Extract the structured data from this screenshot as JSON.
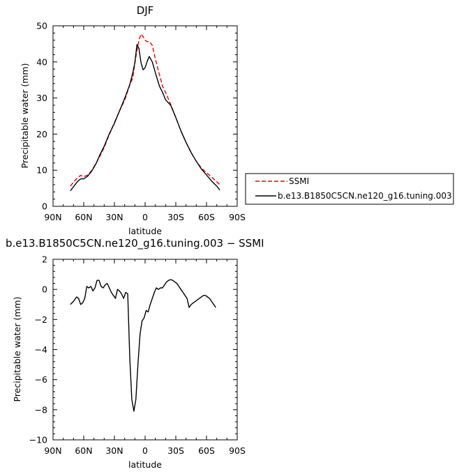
{
  "chart_data": [
    {
      "type": "line",
      "title": "DJF",
      "xlabel": "latitude",
      "ylabel": "Precipitable water (mm)",
      "xlim": [
        90,
        -90
      ],
      "ylim": [
        0,
        50
      ],
      "x_ticks": [
        90,
        60,
        30,
        0,
        -30,
        -60,
        -90
      ],
      "x_tick_labels": [
        "90N",
        "60N",
        "30N",
        "0",
        "30S",
        "60S",
        "90S"
      ],
      "y_ticks": [
        0,
        10,
        20,
        30,
        40,
        50
      ],
      "y_tick_labels": [
        "0",
        "10",
        "20",
        "30",
        "40",
        "50"
      ],
      "legend_position": "right",
      "series": [
        {
          "name": "SSMI",
          "color": "#e8000b",
          "dash": "dashed",
          "x": [
            73,
            70,
            66,
            63,
            60,
            56,
            52,
            48,
            44,
            40,
            35,
            30,
            25,
            20,
            15,
            12,
            10,
            8,
            6,
            4,
            2,
            0,
            -2,
            -4,
            -7,
            -10,
            -14,
            -17,
            -20,
            -25,
            -30,
            -35,
            -40,
            -45,
            -50,
            -55,
            -60,
            -65,
            -70,
            -73
          ],
          "y": [
            5.6,
            6.7,
            7.9,
            8.6,
            8.2,
            8.7,
            10.0,
            11.9,
            14.0,
            16.3,
            19.9,
            23.2,
            26.4,
            29.4,
            33.6,
            35.6,
            39.6,
            43.2,
            46.0,
            47.7,
            47.0,
            46.0,
            45.6,
            45.7,
            44.6,
            40.8,
            36.5,
            33.3,
            31.6,
            28.2,
            24.6,
            20.9,
            17.7,
            14.8,
            12.5,
            10.6,
            9.3,
            8.1,
            6.8,
            6.0
          ]
        },
        {
          "name": "b.e13.B1850C5CN.ne120_g16.tuning.003",
          "color": "#000000",
          "dash": "solid",
          "x": [
            73,
            70,
            66,
            63,
            60,
            56,
            52,
            48,
            44,
            40,
            35,
            30,
            25,
            20,
            15,
            12,
            10,
            8,
            6,
            4,
            2,
            0,
            -2,
            -4,
            -7,
            -10,
            -14,
            -17,
            -20,
            -25,
            -30,
            -35,
            -40,
            -45,
            -50,
            -55,
            -60,
            -65,
            -70,
            -73
          ],
          "y": [
            4.3,
            5.4,
            6.9,
            7.6,
            7.6,
            8.4,
            9.8,
            11.8,
            14.4,
            16.6,
            20.1,
            23.0,
            26.4,
            29.9,
            33.7,
            37.0,
            39.8,
            44.8,
            43.7,
            39.8,
            37.8,
            38.4,
            40.1,
            41.5,
            40.0,
            37.0,
            33.3,
            31.6,
            29.5,
            28.0,
            24.6,
            20.9,
            17.7,
            14.9,
            12.5,
            10.3,
            8.7,
            7.0,
            5.6,
            4.5
          ]
        }
      ]
    },
    {
      "type": "line",
      "title": "b.e13.B1850C5CN.ne120_g16.tuning.003 − SSMI",
      "xlabel": "latitude",
      "ylabel": "Precipitable water (mm)",
      "xlim": [
        90,
        -90
      ],
      "ylim": [
        -10,
        2
      ],
      "x_ticks": [
        90,
        60,
        30,
        0,
        -30,
        -60,
        -90
      ],
      "x_tick_labels": [
        "90N",
        "60N",
        "30N",
        "0",
        "30S",
        "60S",
        "90S"
      ],
      "y_ticks": [
        -10,
        -8,
        -6,
        -4,
        -2,
        0,
        2
      ],
      "y_tick_labels": [
        "−10",
        "−8",
        "−6",
        "−4",
        "−2",
        "0",
        "2"
      ],
      "series": [
        {
          "color": "#000000",
          "dash": "solid",
          "x": [
            73,
            70,
            67,
            65,
            63,
            61,
            59,
            57,
            55,
            53,
            51,
            49,
            47,
            45,
            43,
            41,
            39,
            37,
            35,
            33,
            31,
            29,
            27,
            25,
            23,
            21,
            19,
            17,
            15,
            13,
            11,
            9,
            7,
            5,
            3,
            1,
            -1,
            -3,
            -5,
            -7,
            -9,
            -11,
            -13,
            -15,
            -17,
            -19,
            -21,
            -23,
            -25,
            -27,
            -29,
            -31,
            -33,
            -35,
            -37,
            -39,
            -41,
            -43,
            -45,
            -47,
            -49,
            -51,
            -53,
            -55,
            -57,
            -59,
            -61,
            -63,
            -65,
            -67,
            -69
          ],
          "y": [
            -1.0,
            -0.8,
            -0.5,
            -0.6,
            -1.0,
            -0.9,
            -0.6,
            0.2,
            0.1,
            0.2,
            -0.1,
            0.1,
            0.6,
            0.6,
            0.2,
            0.1,
            0.3,
            0.4,
            0.1,
            -0.2,
            -0.4,
            -0.6,
            0.0,
            -0.1,
            -0.3,
            -0.6,
            -0.2,
            -0.3,
            -4.5,
            -7.3,
            -8.1,
            -7.3,
            -5.0,
            -3.0,
            -2.1,
            -1.9,
            -1.4,
            -1.5,
            -1.0,
            -0.6,
            -0.2,
            0.1,
            0.0,
            0.1,
            0.1,
            0.3,
            0.5,
            0.6,
            0.65,
            0.6,
            0.5,
            0.4,
            0.2,
            0.0,
            -0.2,
            -0.4,
            -0.6,
            -1.2,
            -1.0,
            -0.9,
            -0.8,
            -0.7,
            -0.6,
            -0.5,
            -0.4,
            -0.4,
            -0.5,
            -0.6,
            -0.8,
            -1.0,
            -1.2
          ]
        }
      ]
    }
  ]
}
